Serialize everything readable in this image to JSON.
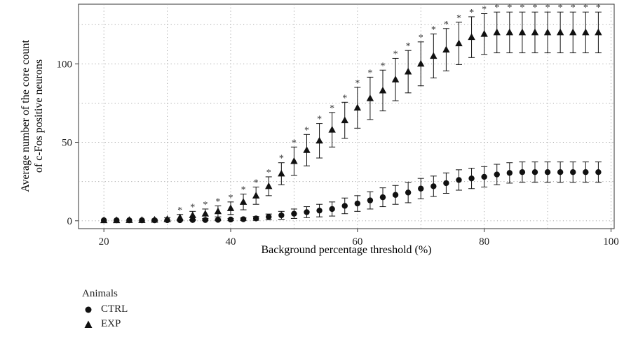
{
  "chart_data": {
    "type": "scatter",
    "xlabel": "Background percentage threshold (%)",
    "ylabel": [
      "Average number of the core count",
      "of c-Fos positive neurons"
    ],
    "xlim": [
      16,
      100.5
    ],
    "ylim": [
      -5,
      138
    ],
    "x_ticks": [
      20,
      40,
      60,
      80,
      100
    ],
    "y_ticks": [
      0,
      50,
      100
    ],
    "grid": "dotted",
    "legend_position": "bottom-left",
    "legend_title": "Animals",
    "x": [
      20,
      22,
      24,
      26,
      28,
      30,
      32,
      34,
      36,
      38,
      40,
      42,
      44,
      46,
      48,
      50,
      52,
      54,
      56,
      58,
      60,
      62,
      64,
      66,
      68,
      70,
      72,
      74,
      76,
      78,
      80,
      82,
      84,
      86,
      88,
      90,
      92,
      94,
      96,
      98
    ],
    "series": [
      {
        "name": "CTRL",
        "marker": "circle",
        "values": [
          0.3,
          0.3,
          0.3,
          0.3,
          0.3,
          0.4,
          0.4,
          0.5,
          0.5,
          0.6,
          0.8,
          1.0,
          1.5,
          2.5,
          3.5,
          4.5,
          5.5,
          6.5,
          7.5,
          9.5,
          11,
          13,
          15,
          16.5,
          18,
          20.5,
          22,
          24,
          26,
          27,
          28,
          29.5,
          30.5,
          31,
          31,
          31,
          31,
          31,
          31,
          31
        ],
        "err_upper": [
          0.1,
          0.1,
          0.1,
          0.1,
          0.2,
          0.3,
          0.3,
          0.4,
          0.4,
          0.5,
          0.6,
          0.8,
          1.2,
          1.8,
          2.5,
          3,
          3.5,
          4,
          4.5,
          5,
          5,
          5.5,
          6,
          6,
          6.5,
          6.5,
          6.5,
          6.5,
          6.5,
          6.5,
          6.5,
          6.5,
          6.5,
          6.5,
          6.5,
          6.5,
          6.5,
          6.5,
          6.5,
          6.5
        ],
        "err_lower": [
          0.1,
          0.1,
          0.1,
          0.1,
          0.2,
          0.3,
          0.3,
          0.4,
          0.4,
          0.5,
          0.6,
          0.8,
          1.2,
          1.8,
          2.5,
          3,
          3.5,
          4,
          4.5,
          5,
          5,
          5.5,
          6,
          6,
          6.5,
          6.5,
          6.5,
          6.5,
          6.5,
          6.5,
          6.5,
          6.5,
          6.5,
          6.5,
          6.5,
          6.5,
          6.5,
          6.5,
          6.5,
          6.5
        ]
      },
      {
        "name": "EXP",
        "marker": "triangle",
        "values": [
          0.3,
          0.3,
          0.4,
          0.4,
          0.6,
          1.0,
          2.0,
          3.5,
          4.5,
          6,
          8,
          12,
          16,
          22,
          30,
          38,
          45,
          51,
          58,
          64,
          72,
          78,
          83,
          90,
          95,
          100,
          105,
          109,
          113,
          117,
          119,
          120,
          120,
          120,
          120,
          120,
          120,
          120,
          120,
          120
        ],
        "err_upper": [
          0.2,
          0.2,
          0.3,
          0.3,
          0.5,
          1,
          2,
          2.5,
          3,
          3.5,
          4,
          5,
          5.5,
          6,
          7,
          9,
          10,
          11,
          11,
          11.5,
          13,
          13.5,
          13,
          13.5,
          13.5,
          14,
          14,
          13.5,
          13.5,
          13,
          13,
          13,
          13,
          13,
          13,
          13,
          13,
          13,
          13,
          13
        ],
        "err_lower": [
          0.2,
          0.2,
          0.3,
          0.3,
          0.5,
          1,
          2,
          2.5,
          3,
          3.5,
          4,
          5,
          5.5,
          6,
          7,
          9,
          10,
          11,
          11,
          11.5,
          13,
          13.5,
          13,
          13.5,
          13.5,
          14,
          14,
          13.5,
          13.5,
          13,
          13,
          13,
          13,
          13,
          13,
          13,
          13,
          13,
          13,
          13
        ],
        "significant": [
          false,
          false,
          false,
          false,
          false,
          false,
          true,
          true,
          true,
          true,
          true,
          true,
          true,
          true,
          true,
          true,
          true,
          true,
          true,
          true,
          true,
          true,
          true,
          true,
          true,
          true,
          true,
          true,
          true,
          true,
          true,
          true,
          true,
          true,
          true,
          true,
          true,
          true,
          true,
          true
        ]
      }
    ],
    "significance_marker": "*"
  }
}
